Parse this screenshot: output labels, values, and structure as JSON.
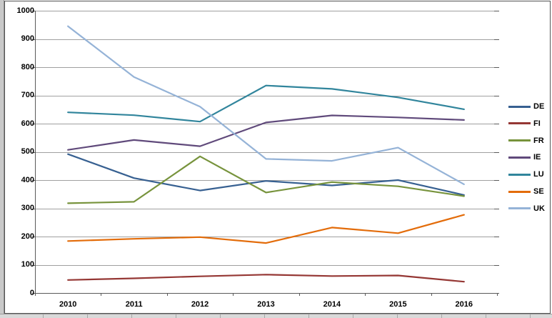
{
  "chart_data": {
    "type": "line",
    "title": "",
    "xlabel": "",
    "ylabel": "",
    "categories": [
      "2010",
      "2011",
      "2012",
      "2013",
      "2014",
      "2015",
      "2016"
    ],
    "series": [
      {
        "name": "DE",
        "color": "#376091",
        "values": [
          492,
          407,
          363,
          397,
          381,
          400,
          347
        ]
      },
      {
        "name": "FI",
        "color": "#953734",
        "values": [
          46,
          52,
          59,
          65,
          60,
          62,
          40
        ]
      },
      {
        "name": "FR",
        "color": "#77933C",
        "values": [
          318,
          323,
          484,
          356,
          393,
          378,
          343
        ]
      },
      {
        "name": "IE",
        "color": "#604A7B",
        "values": [
          507,
          542,
          520,
          604,
          629,
          622,
          613
        ]
      },
      {
        "name": "LU",
        "color": "#31859C",
        "values": [
          640,
          630,
          607,
          735,
          723,
          693,
          651
        ]
      },
      {
        "name": "SE",
        "color": "#E36C0A",
        "values": [
          184,
          192,
          198,
          177,
          232,
          212,
          277
        ]
      },
      {
        "name": "UK",
        "color": "#95B3D7",
        "values": [
          945,
          765,
          660,
          475,
          468,
          515,
          385
        ]
      }
    ],
    "ylim": [
      0,
      1000
    ],
    "ytick_step": 100,
    "y_tick_labels": [
      "0",
      "100",
      "200",
      "300",
      "400",
      "500",
      "600",
      "700",
      "800",
      "900",
      "1000"
    ],
    "grid": true,
    "legend_position": "right"
  },
  "colors": {
    "gridline": "#A0A0A0",
    "axis": "#595959",
    "tick": "#595959",
    "chart_border": "#545454",
    "worksheet_margin": "#C9C9C9",
    "worksheet_bottom": "#D9D9D9",
    "label_text": "#000000"
  }
}
